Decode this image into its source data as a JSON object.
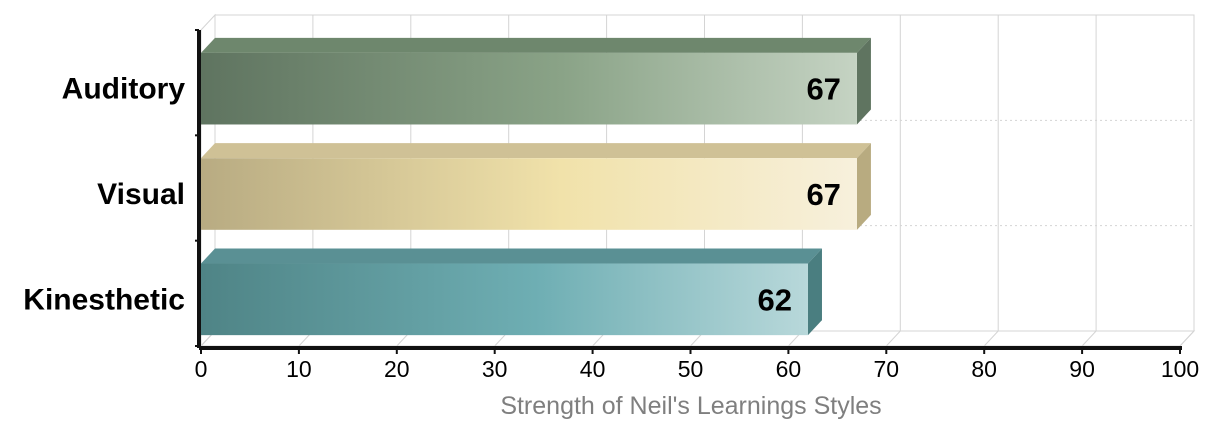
{
  "chart_data": {
    "type": "bar",
    "orientation": "horizontal",
    "categories": [
      "Auditory",
      "Visual",
      "Kinesthetic"
    ],
    "values": [
      67,
      67,
      62
    ],
    "data_labels": [
      "67",
      "67",
      "62"
    ],
    "xlabel": "Strength of Neil's Learnings Styles",
    "ylabel": "",
    "xlim": [
      0,
      100
    ],
    "x_ticks": [
      0,
      10,
      20,
      30,
      40,
      50,
      60,
      70,
      80,
      90,
      100
    ],
    "grid": true,
    "legend": "none",
    "style": "3d-gradient",
    "colors": [
      {
        "dark": "#5f7460",
        "mid": "#8aa387",
        "light": "#c5d3c3",
        "top": "#6e876d",
        "side": "#5f7460"
      },
      {
        "dark": "#b8ab82",
        "mid": "#f1e2aa",
        "light": "#f7f0dc",
        "top": "#cfc196",
        "side": "#b8ab80"
      },
      {
        "dark": "#4f8486",
        "mid": "#6eaeb3",
        "light": "#b8d8da",
        "top": "#5a9094",
        "side": "#4a7e80"
      }
    ],
    "axis_color": "#111111",
    "grid_color": "#d4d4d4",
    "xlabel_color": "#7f7f7f"
  }
}
